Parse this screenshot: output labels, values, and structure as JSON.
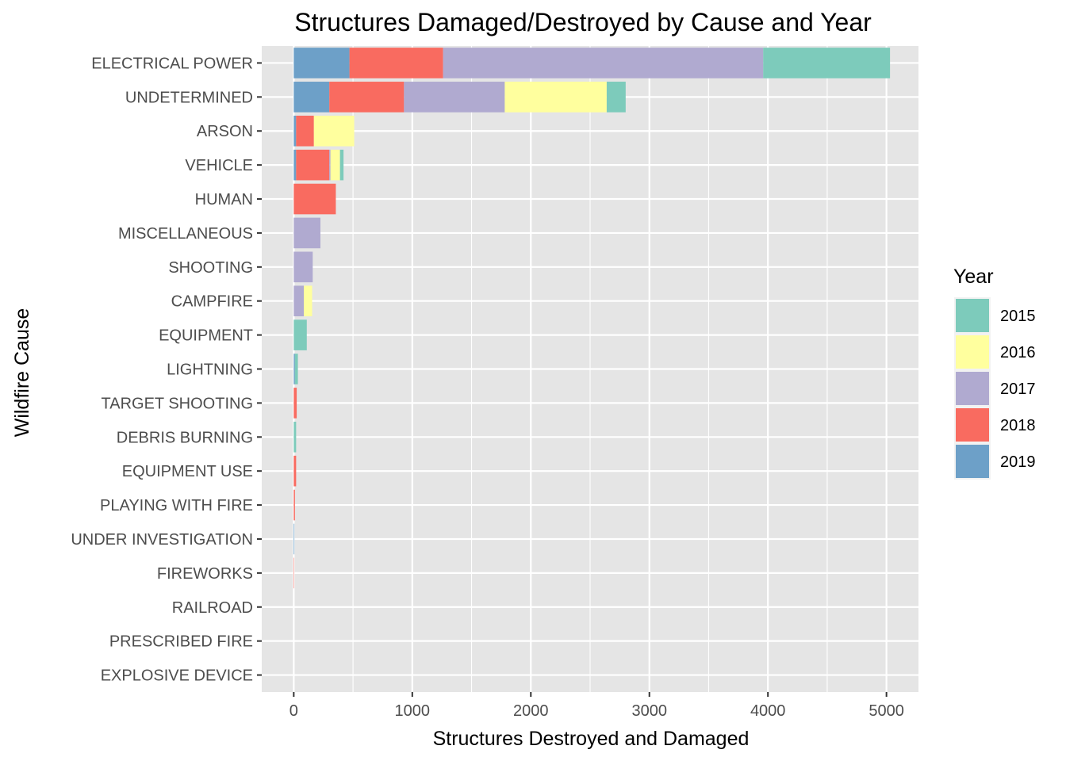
{
  "chart_data": {
    "type": "bar",
    "orientation": "horizontal",
    "stacked": true,
    "title": "Structures Damaged/Destroyed by Cause and Year",
    "xlabel": "Structures Destroyed and Damaged",
    "ylabel": "Wildfire Cause",
    "xlim": [
      -270,
      5270
    ],
    "xticks": [
      0,
      1000,
      2000,
      3000,
      4000,
      5000
    ],
    "xtick_labels": [
      "0",
      "1000",
      "2000",
      "3000",
      "4000",
      "5000"
    ],
    "grid": true,
    "legend_position": "right",
    "legend_title": "Year",
    "legend_order": [
      "2015",
      "2016",
      "2017",
      "2018",
      "2019"
    ],
    "stack_order": [
      "2019",
      "2018",
      "2017",
      "2016",
      "2015"
    ],
    "categories": [
      "ELECTRICAL POWER",
      "UNDETERMINED",
      "ARSON",
      "VEHICLE",
      "HUMAN",
      "MISCELLANEOUS",
      "SHOOTING",
      "CAMPFIRE",
      "EQUIPMENT",
      "LIGHTNING",
      "TARGET SHOOTING",
      "DEBRIS BURNING",
      "EQUIPMENT USE",
      "PLAYING WITH FIRE",
      "UNDER INVESTIGATION",
      "FIREWORKS",
      "RAILROAD",
      "PRESCRIBED FIRE",
      "EXPLOSIVE DEVICE"
    ],
    "series": [
      {
        "name": "2019",
        "color": "#6da0c8",
        "values": [
          470,
          300,
          20,
          20,
          0,
          0,
          0,
          0,
          0,
          10,
          0,
          0,
          0,
          0,
          5,
          0,
          0,
          0,
          0
        ]
      },
      {
        "name": "2018",
        "color": "#f96b60",
        "values": [
          790,
          630,
          150,
          280,
          355,
          0,
          0,
          0,
          0,
          0,
          25,
          0,
          20,
          10,
          0,
          3,
          0,
          0,
          0
        ]
      },
      {
        "name": "2017",
        "color": "#b0aad0",
        "values": [
          2700,
          850,
          0,
          10,
          0,
          225,
          160,
          85,
          0,
          0,
          0,
          0,
          0,
          0,
          0,
          0,
          0,
          0,
          0
        ]
      },
      {
        "name": "2016",
        "color": "#ffff9e",
        "values": [
          0,
          860,
          340,
          80,
          0,
          0,
          0,
          70,
          0,
          0,
          0,
          0,
          0,
          0,
          0,
          0,
          0,
          0,
          0
        ]
      },
      {
        "name": "2015",
        "color": "#7dcbbb",
        "values": [
          1070,
          160,
          0,
          30,
          0,
          0,
          0,
          0,
          110,
          25,
          0,
          20,
          0,
          0,
          0,
          0,
          0,
          0,
          0
        ]
      }
    ],
    "panel_background": "#e5e5e5",
    "gridline_color": "#ffffff"
  }
}
